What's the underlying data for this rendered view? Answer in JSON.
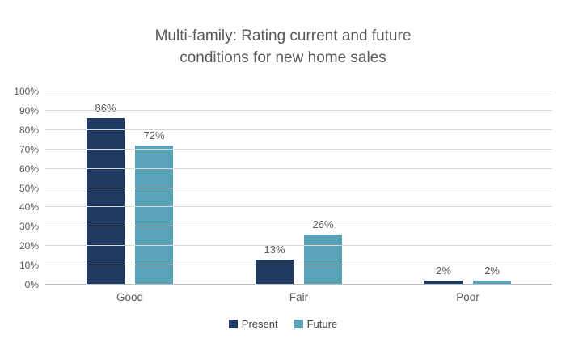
{
  "title": "Multi-family: Rating current and future conditions for new home sales",
  "colors": {
    "present": "#1f3a60",
    "future": "#58a3b8",
    "text": "#595959",
    "gridline": "#d9d9d9",
    "background": "#ffffff"
  },
  "chart_data": {
    "type": "bar",
    "title": "Multi-family: Rating current and future conditions for new home sales",
    "categories": [
      "Good",
      "Fair",
      "Poor"
    ],
    "series": [
      {
        "name": "Present",
        "color": "#1f3a60",
        "values": [
          86,
          13,
          2
        ]
      },
      {
        "name": "Future",
        "color": "#58a3b8",
        "values": [
          72,
          26,
          2
        ]
      }
    ],
    "value_suffix": "%",
    "y_ticks": [
      "0%",
      "10%",
      "20%",
      "30%",
      "40%",
      "50%",
      "60%",
      "70%",
      "80%",
      "90%",
      "100%"
    ],
    "ylim": [
      0,
      100
    ],
    "xlabel": "",
    "ylabel": "",
    "grid": true,
    "legend_position": "bottom"
  }
}
